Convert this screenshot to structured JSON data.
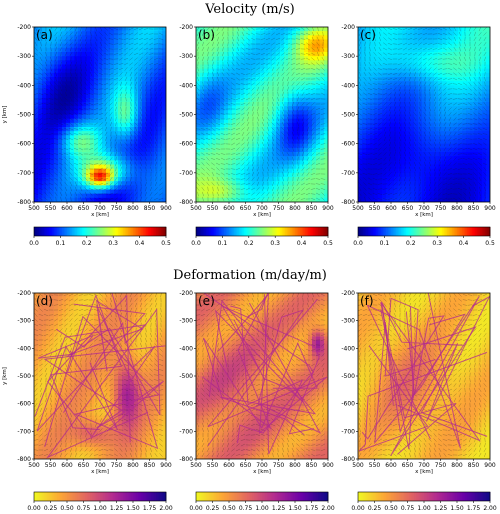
{
  "figure": {
    "top_title": "Velocity (m/s)",
    "bottom_title": "Deformation (m/day/m)"
  },
  "chart_data": [
    {
      "type": "heatmap",
      "label": "(a)",
      "xlabel": "x [km]",
      "ylabel": "y [km]",
      "xlim": [
        500,
        900
      ],
      "ylim": [
        -800,
        -200
      ],
      "xticks": [
        500,
        550,
        600,
        650,
        700,
        750,
        800,
        850,
        900
      ],
      "yticks": [
        -200,
        -300,
        -400,
        -500,
        -600,
        -700,
        -800
      ],
      "colormap": "jet",
      "pattern": "velocity_a",
      "show_xlabel": true,
      "show_ylabel": true
    },
    {
      "type": "heatmap",
      "label": "(b)",
      "xlabel": "x [km]",
      "ylabel": "",
      "xlim": [
        500,
        900
      ],
      "ylim": [
        -800,
        -200
      ],
      "xticks": [
        500,
        550,
        600,
        650,
        700,
        750,
        800,
        850,
        900
      ],
      "yticks": [
        -200,
        -300,
        -400,
        -500,
        -600,
        -700,
        -800
      ],
      "colormap": "jet",
      "pattern": "velocity_b",
      "show_xlabel": true,
      "show_ylabel": false
    },
    {
      "type": "heatmap",
      "label": "(c)",
      "xlabel": "x [km]",
      "ylabel": "",
      "xlim": [
        500,
        900
      ],
      "ylim": [
        -800,
        -200
      ],
      "xticks": [
        500,
        550,
        600,
        650,
        700,
        750,
        800,
        850,
        900
      ],
      "yticks": [
        -200,
        -300,
        -400,
        -500,
        -600,
        -700,
        -800
      ],
      "colormap": "jet",
      "pattern": "velocity_c",
      "show_xlabel": true,
      "show_ylabel": false
    },
    {
      "type": "heatmap",
      "label": "(d)",
      "xlabel": "x [km]",
      "ylabel": "y [km]",
      "xlim": [
        500,
        900
      ],
      "ylim": [
        -800,
        -200
      ],
      "xticks": [
        500,
        550,
        600,
        650,
        700,
        750,
        800,
        850,
        900
      ],
      "yticks": [
        -200,
        -300,
        -400,
        -500,
        -600,
        -700,
        -800
      ],
      "colormap": "plasma_r",
      "pattern": "deformation_d",
      "show_xlabel": true,
      "show_ylabel": true
    },
    {
      "type": "heatmap",
      "label": "(e)",
      "xlabel": "x [km]",
      "ylabel": "",
      "xlim": [
        500,
        900
      ],
      "ylim": [
        -800,
        -200
      ],
      "xticks": [
        500,
        550,
        600,
        650,
        700,
        750,
        800,
        850,
        900
      ],
      "yticks": [
        -200,
        -300,
        -400,
        -500,
        -600,
        -700,
        -800
      ],
      "colormap": "plasma_r",
      "pattern": "deformation_e",
      "show_xlabel": true,
      "show_ylabel": false
    },
    {
      "type": "heatmap",
      "label": "(f)",
      "xlabel": "x [km]",
      "ylabel": "",
      "xlim": [
        500,
        900
      ],
      "ylim": [
        -800,
        -200
      ],
      "xticks": [
        500,
        550,
        600,
        650,
        700,
        750,
        800,
        850,
        900
      ],
      "yticks": [
        -200,
        -300,
        -400,
        -500,
        -600,
        -700,
        -800
      ],
      "colormap": "plasma_r",
      "pattern": "deformation_f",
      "show_xlabel": true,
      "show_ylabel": false
    }
  ],
  "colorbars": [
    {
      "colormap": "jet",
      "range": [
        0,
        0.5
      ],
      "ticks": [
        "0.0",
        "0.1",
        "0.2",
        "0.3",
        "0.4",
        "0.5"
      ]
    },
    {
      "colormap": "jet",
      "range": [
        0,
        0.5
      ],
      "ticks": [
        "0.0",
        "0.1",
        "0.2",
        "0.3",
        "0.4",
        "0.5"
      ]
    },
    {
      "colormap": "jet",
      "range": [
        0,
        0.5
      ],
      "ticks": [
        "0.0",
        "0.1",
        "0.2",
        "0.3",
        "0.4",
        "0.5"
      ]
    },
    {
      "colormap": "plasma_r",
      "range": [
        0,
        2
      ],
      "ticks": [
        "0.00",
        "0.25",
        "0.50",
        "0.75",
        "1.00",
        "1.25",
        "1.50",
        "1.75",
        "2.00"
      ]
    },
    {
      "colormap": "plasma_r",
      "range": [
        0,
        2
      ],
      "ticks": [
        "0.00",
        "0.25",
        "0.50",
        "0.75",
        "1.00",
        "1.25",
        "1.50",
        "1.75",
        "2.00"
      ]
    },
    {
      "colormap": "plasma_r",
      "range": [
        0,
        2
      ],
      "ticks": [
        "0.00",
        "0.25",
        "0.50",
        "0.75",
        "1.00",
        "1.25",
        "1.50",
        "1.75",
        "2.00"
      ]
    }
  ],
  "colors": {
    "jet": [
      "#00007f",
      "#0000ff",
      "#007fff",
      "#00ffff",
      "#7fff7f",
      "#ffff00",
      "#ff7f00",
      "#ff0000",
      "#7f0000"
    ],
    "plasma_r": [
      "#f0f921",
      "#fca636",
      "#e16462",
      "#b12a90",
      "#6a00a8",
      "#0d0887"
    ]
  }
}
